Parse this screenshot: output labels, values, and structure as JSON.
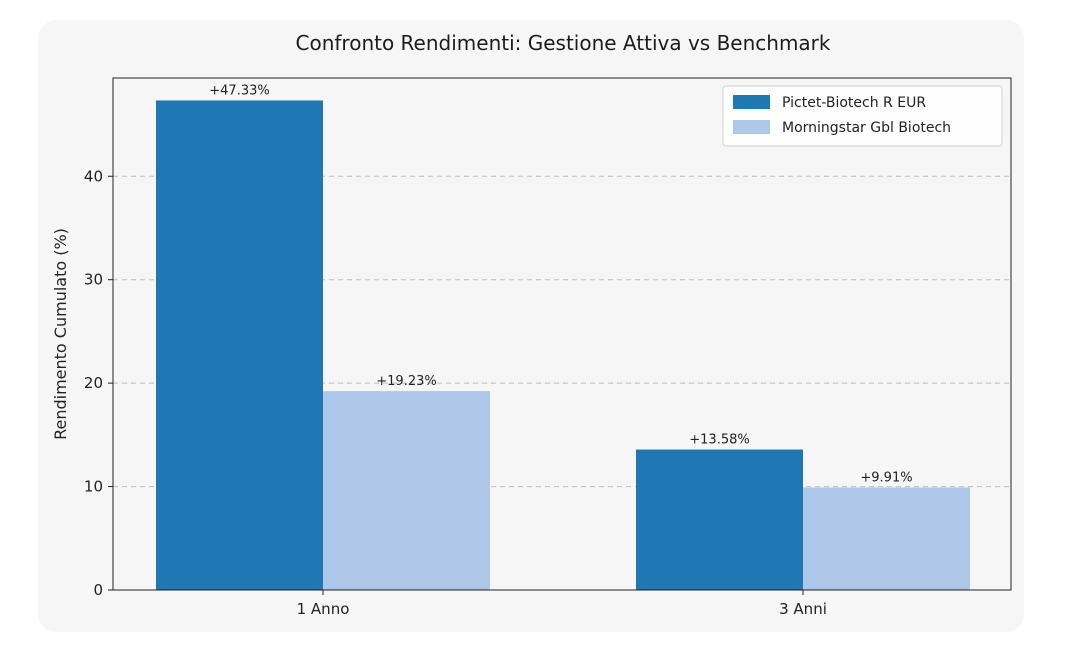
{
  "chart_data": {
    "type": "bar",
    "title": "Confronto Rendimenti: Gestione Attiva vs Benchmark",
    "xlabel": "",
    "ylabel": "Rendimento Cumulato (%)",
    "categories": [
      "1 Anno",
      "3 Anni"
    ],
    "series": [
      {
        "name": "Pictet-Biotech R EUR",
        "values": [
          47.33,
          13.58
        ],
        "labels": [
          "+47.33%",
          "+13.58%"
        ],
        "color": "#1f77b4"
      },
      {
        "name": "Morningstar Gbl Biotech",
        "values": [
          19.23,
          9.91
        ],
        "labels": [
          "+19.23%",
          "+9.91%"
        ],
        "color": "#aec7e8"
      }
    ],
    "ylim": [
      0,
      49.5
    ],
    "yticks": [
      0,
      10,
      20,
      30,
      40
    ],
    "grid": "y-dashed",
    "legend_position": "top-right"
  }
}
